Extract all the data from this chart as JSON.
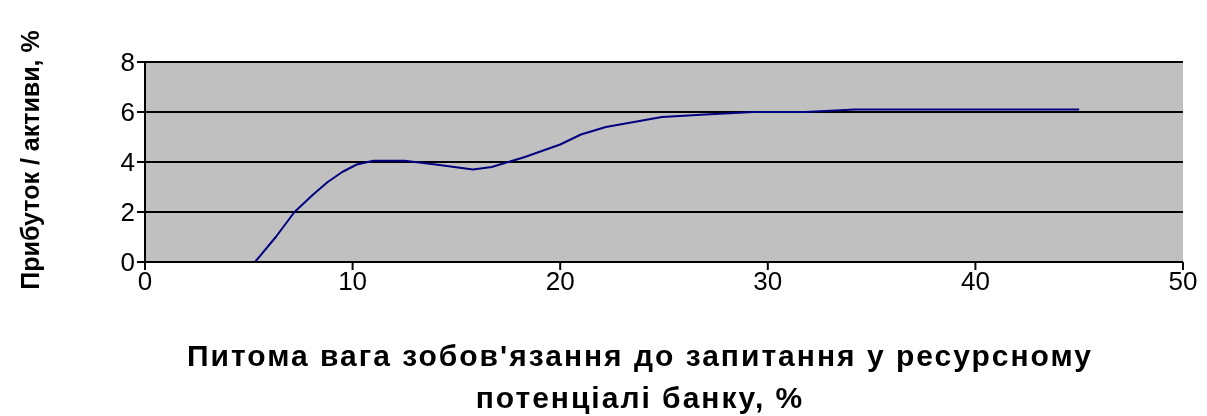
{
  "chart_data": {
    "type": "line",
    "xlabel": "Питома вага зобов'язання до запитання у ресурсному потенціалі банку, %",
    "ylabel": "Прибуток / активи, %",
    "x": [
      5.3,
      6.3,
      7.2,
      8.1,
      8.8,
      9.5,
      10.2,
      11,
      12.5,
      14,
      15.8,
      16.7,
      18.3,
      20,
      21,
      22.2,
      24.9,
      27,
      29.3,
      31.8,
      34.2,
      45
    ],
    "series": [
      {
        "color": "#000080",
        "values": [
          0,
          1,
          2,
          2.7,
          3.2,
          3.6,
          3.9,
          4.05,
          4.05,
          3.9,
          3.7,
          3.8,
          4.2,
          4.7,
          5.1,
          5.4,
          5.8,
          5.9,
          6.0,
          6.0,
          6.1,
          6.1
        ]
      }
    ],
    "xlim": [
      0,
      50
    ],
    "xticks": [
      0,
      10,
      20,
      30,
      40,
      50
    ],
    "ylim": [
      0,
      8
    ],
    "yticks": [
      0,
      2,
      4,
      6,
      8
    ],
    "grid": "y",
    "marker": "none",
    "line_style": "solid",
    "legend": false
  }
}
